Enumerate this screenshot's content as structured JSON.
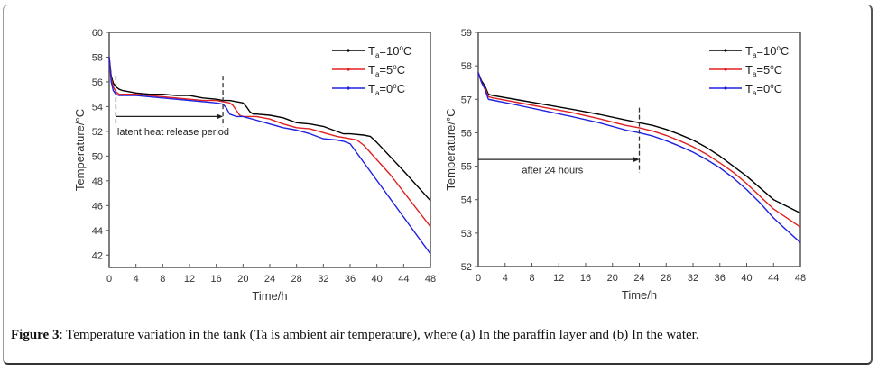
{
  "caption": {
    "label": "Figure 3",
    "text": ": Temperature variation in the tank (Ta is ambient air temperature), where (a) In the paraffin layer and (b) In the water."
  },
  "chart_data": [
    {
      "id": "paraffin",
      "type": "line",
      "title": "",
      "xlabel": "Time/h",
      "ylabel": "Temperature/°C",
      "xlim": [
        0,
        48
      ],
      "ylim": [
        41,
        60
      ],
      "xticks": [
        0,
        4,
        8,
        12,
        16,
        20,
        24,
        28,
        32,
        36,
        40,
        44,
        48
      ],
      "yticks": [
        42,
        44,
        46,
        48,
        50,
        52,
        54,
        56,
        58,
        60
      ],
      "grid": false,
      "legend_position": "top-right",
      "series": [
        {
          "name": "Ta=10°C",
          "sub": "a",
          "value_label": "10",
          "color": "#000000",
          "x": [
            0,
            0.3,
            0.6,
            1,
            1.5,
            2,
            4,
            6,
            8,
            10,
            12,
            14,
            16,
            17,
            18,
            19,
            20,
            20.5,
            21,
            21.5,
            22,
            24,
            26,
            28,
            30,
            32,
            34,
            35,
            36,
            38,
            39,
            40,
            44,
            48
          ],
          "y": [
            58.0,
            56.5,
            55.9,
            55.6,
            55.4,
            55.3,
            55.1,
            55.0,
            55.0,
            54.9,
            54.9,
            54.7,
            54.6,
            54.5,
            54.5,
            54.4,
            54.3,
            54.0,
            53.6,
            53.4,
            53.4,
            53.3,
            53.1,
            52.7,
            52.6,
            52.4,
            52.0,
            51.8,
            51.8,
            51.7,
            51.6,
            51.1,
            48.8,
            46.4
          ]
        },
        {
          "name": "Ta=5°C",
          "sub": "a",
          "value_label": "5",
          "color": "#e02020",
          "x": [
            0,
            0.3,
            0.6,
            1,
            1.5,
            2,
            4,
            6,
            8,
            10,
            12,
            14,
            16,
            17,
            18,
            18.5,
            19,
            19.5,
            20,
            22,
            24,
            26,
            28,
            30,
            32,
            34,
            36,
            37,
            38,
            42,
            48
          ],
          "y": [
            58.0,
            56.3,
            55.6,
            55.2,
            55.0,
            55.0,
            55.0,
            54.9,
            54.8,
            54.7,
            54.6,
            54.5,
            54.5,
            54.4,
            54.3,
            54.1,
            53.7,
            53.3,
            53.2,
            53.2,
            53.0,
            52.6,
            52.3,
            52.2,
            51.9,
            51.6,
            51.4,
            51.3,
            50.9,
            48.5,
            44.3
          ]
        },
        {
          "name": "Ta=0°C",
          "sub": "a",
          "value_label": "0",
          "color": "#2020e0",
          "x": [
            0,
            0.3,
            0.6,
            1,
            1.5,
            2,
            4,
            6,
            8,
            10,
            12,
            14,
            16,
            17,
            17.5,
            18,
            19,
            20,
            22,
            24,
            26,
            28,
            30,
            32,
            34,
            35,
            36,
            48
          ],
          "y": [
            58.0,
            56.0,
            55.3,
            55.0,
            54.9,
            54.9,
            54.9,
            54.8,
            54.7,
            54.6,
            54.5,
            54.4,
            54.3,
            54.2,
            53.9,
            53.4,
            53.2,
            53.2,
            52.9,
            52.6,
            52.3,
            52.1,
            51.8,
            51.4,
            51.3,
            51.2,
            51.0,
            42.1
          ]
        }
      ],
      "annotations": {
        "text": "latent heat release period",
        "dashed_lines_x": [
          1,
          17
        ],
        "dashed_lines_y_range": [
          52.4,
          56.5
        ],
        "arrow": {
          "x_from": 1,
          "x_to": 17,
          "y": 53.2
        },
        "text_pos": {
          "x": 1.2,
          "y": 52.0
        }
      }
    },
    {
      "id": "water",
      "type": "line",
      "title": "",
      "xlabel": "Time/h",
      "ylabel": "Temperature/°C",
      "xlim": [
        0,
        48
      ],
      "ylim": [
        52,
        59
      ],
      "xticks": [
        0,
        4,
        8,
        12,
        16,
        20,
        24,
        28,
        32,
        36,
        40,
        44,
        48
      ],
      "yticks": [
        52,
        53,
        54,
        55,
        56,
        57,
        58,
        59
      ],
      "grid": false,
      "legend_position": "top-right",
      "series": [
        {
          "name": "Ta=10°C",
          "sub": "a",
          "value_label": "10",
          "color": "#000000",
          "x": [
            0,
            0.5,
            1,
            1.5,
            2,
            6,
            10,
            14,
            18,
            22,
            24,
            26,
            28,
            30,
            32,
            34,
            36,
            38,
            40,
            42,
            44,
            46,
            48
          ],
          "y": [
            57.8,
            57.55,
            57.4,
            57.15,
            57.12,
            56.98,
            56.84,
            56.7,
            56.55,
            56.38,
            56.3,
            56.22,
            56.1,
            55.95,
            55.78,
            55.56,
            55.3,
            55.0,
            54.7,
            54.35,
            54.0,
            53.8,
            53.6
          ]
        },
        {
          "name": "Ta=5°C",
          "sub": "a",
          "value_label": "5",
          "color": "#e02020",
          "x": [
            0,
            0.5,
            1,
            1.5,
            2,
            6,
            10,
            14,
            18,
            22,
            24,
            26,
            28,
            30,
            32,
            34,
            36,
            38,
            40,
            42,
            44,
            46,
            48
          ],
          "y": [
            57.8,
            57.5,
            57.35,
            57.08,
            57.05,
            56.9,
            56.75,
            56.6,
            56.42,
            56.22,
            56.15,
            56.05,
            55.92,
            55.76,
            55.58,
            55.36,
            55.1,
            54.82,
            54.48,
            54.1,
            53.72,
            53.45,
            53.18
          ]
        },
        {
          "name": "Ta=0°C",
          "sub": "a",
          "value_label": "0",
          "color": "#2020e0",
          "x": [
            0,
            0.5,
            1,
            1.5,
            2,
            6,
            10,
            14,
            18,
            22,
            24,
            26,
            28,
            30,
            32,
            34,
            36,
            38,
            40,
            42,
            44,
            46,
            48
          ],
          "y": [
            57.8,
            57.5,
            57.3,
            57.0,
            56.98,
            56.82,
            56.65,
            56.48,
            56.3,
            56.08,
            56.0,
            55.9,
            55.76,
            55.6,
            55.42,
            55.2,
            54.95,
            54.65,
            54.3,
            53.9,
            53.45,
            53.08,
            52.72
          ]
        }
      ],
      "annotations": {
        "text": "after 24 hours",
        "dashed_lines_x": [
          24
        ],
        "dashed_lines_y_range": [
          54.8,
          56.75
        ],
        "arrow": {
          "x_from": 0,
          "x_to": 24,
          "y": 55.2
        },
        "text_pos": {
          "x": 6.5,
          "y": 54.9
        }
      }
    }
  ]
}
